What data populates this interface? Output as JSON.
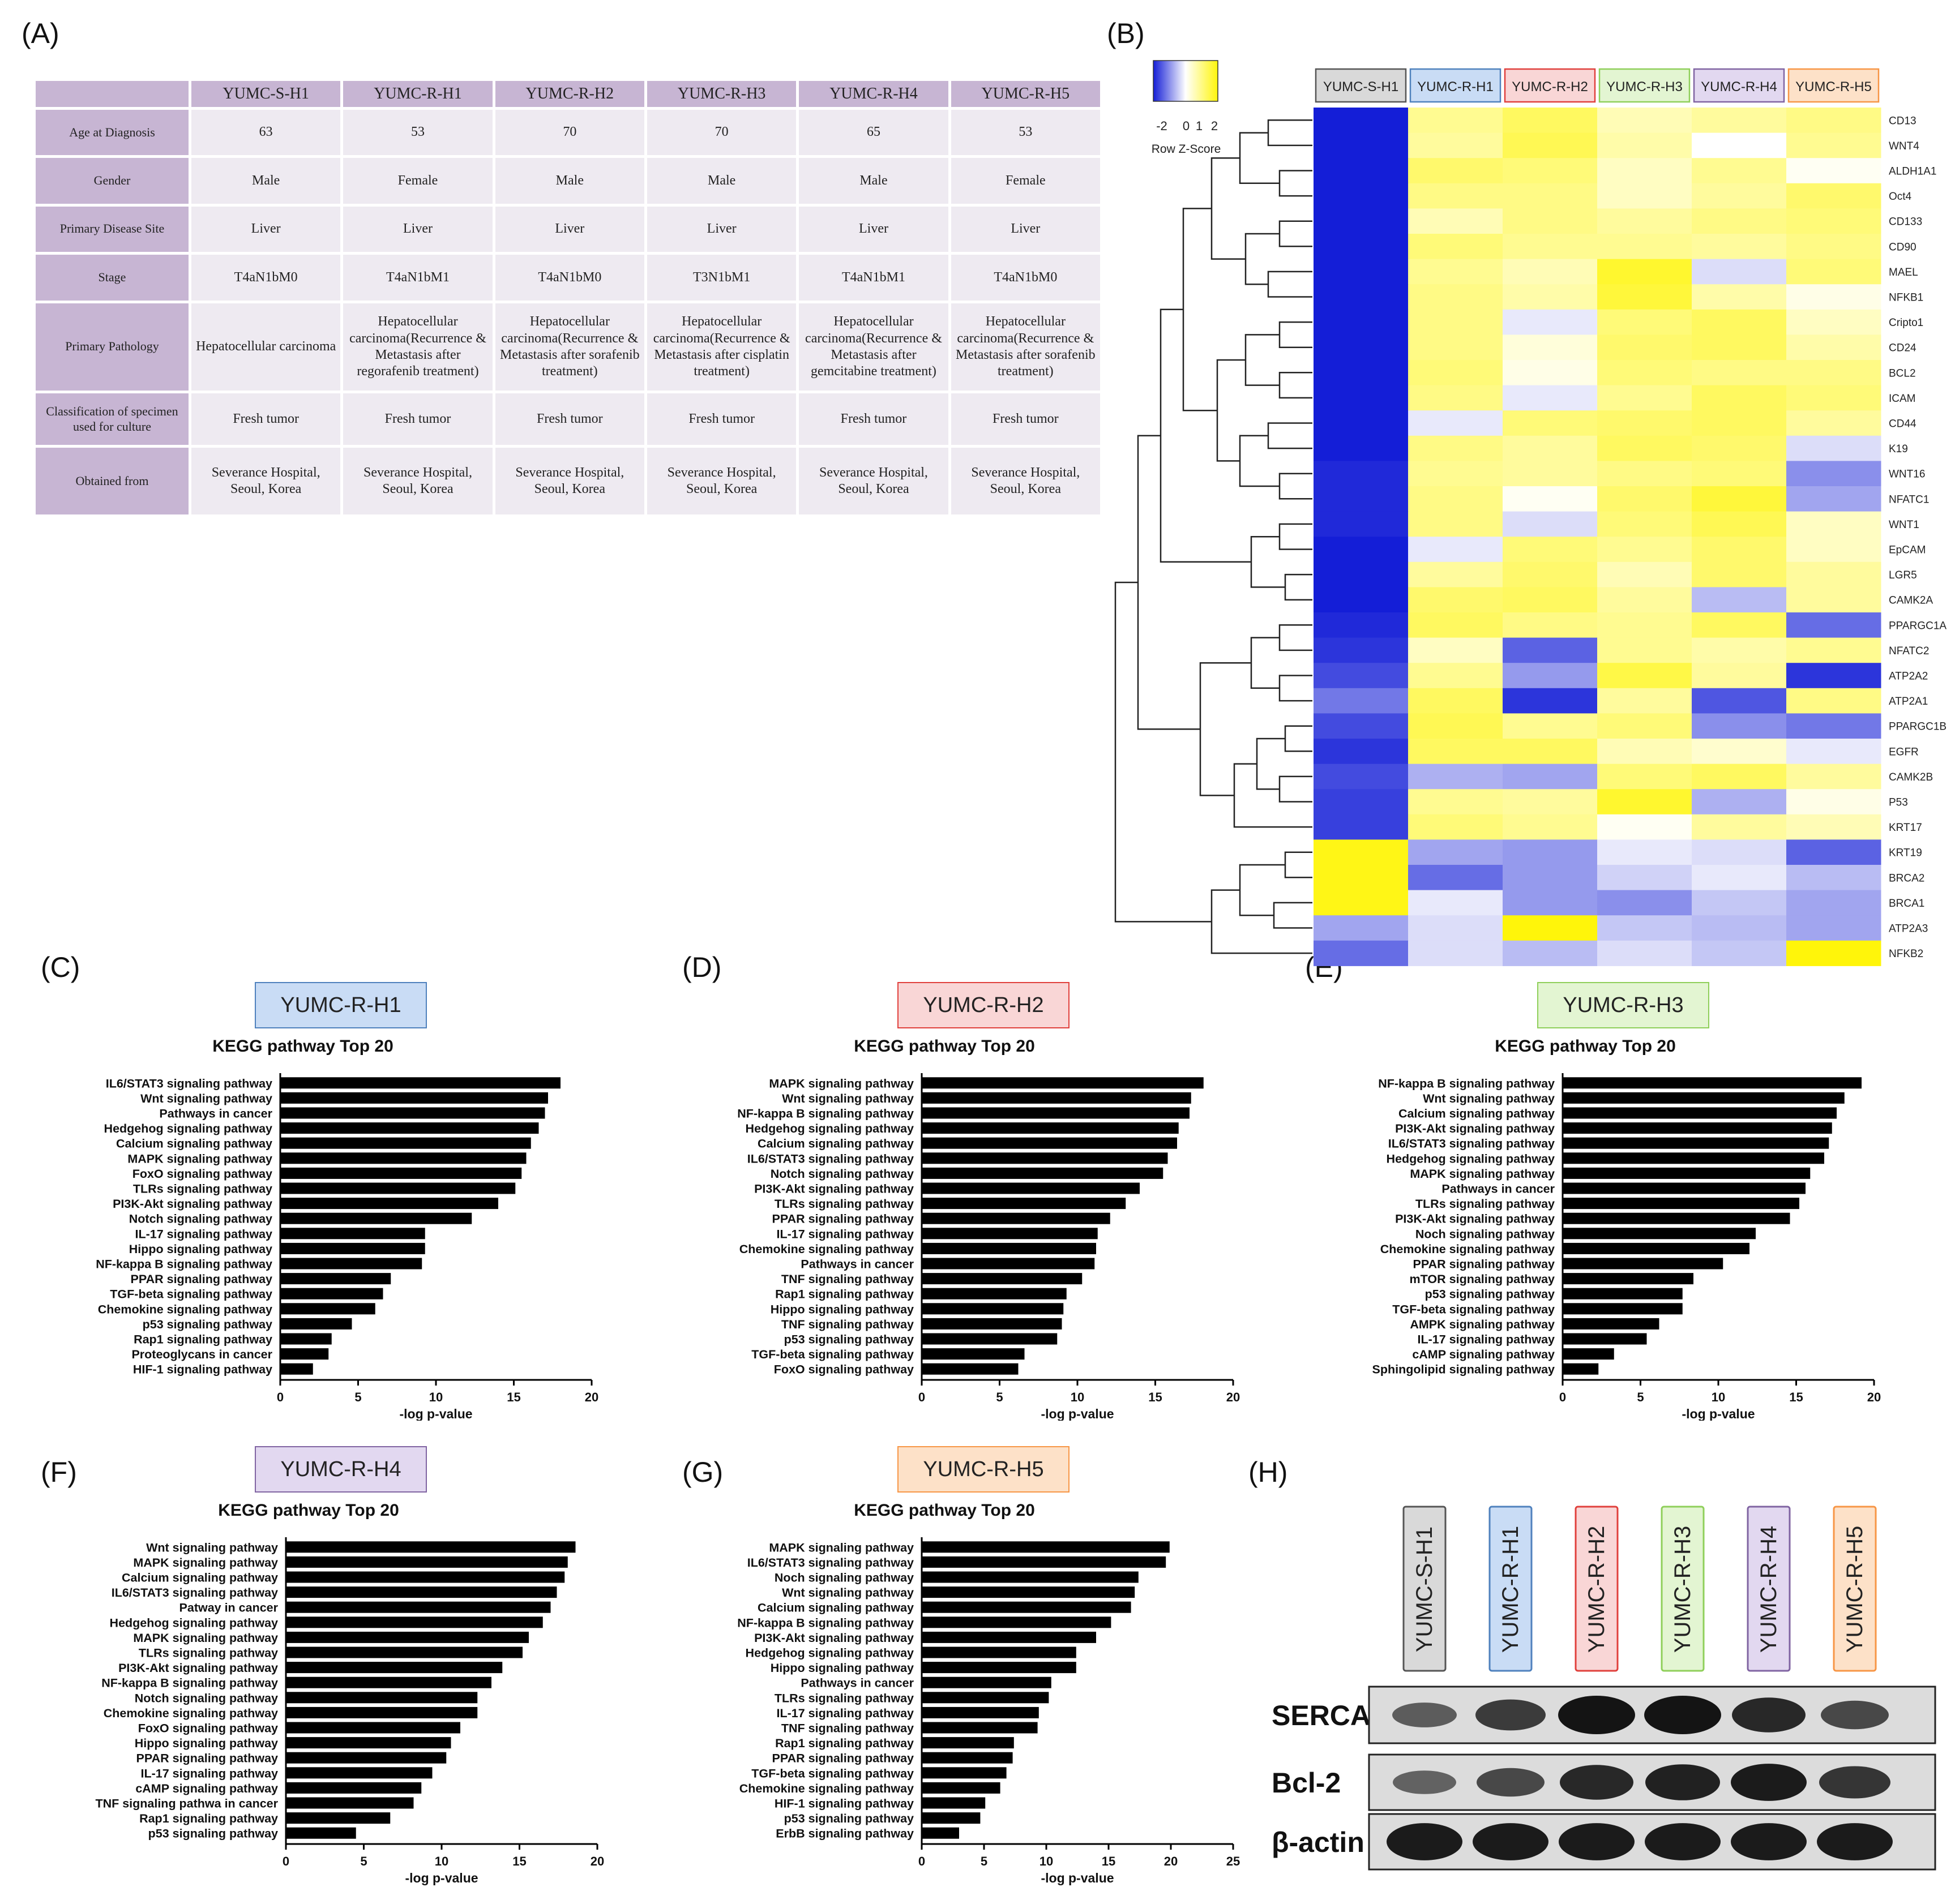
{
  "panels": {
    "a": "(A)",
    "b": "(B)",
    "c": "(C)",
    "d": "(D)",
    "e": "(E)",
    "f": "(F)",
    "g": "(G)",
    "h": "(H)"
  },
  "table": {
    "columns": [
      "YUMC-S-H1",
      "YUMC-R-H1",
      "YUMC-R-H2",
      "YUMC-R-H3",
      "YUMC-R-H4",
      "YUMC-R-H5"
    ],
    "rows": [
      {
        "label": "Age at Diagnosis",
        "values": [
          "63",
          "53",
          "70",
          "70",
          "65",
          "53"
        ]
      },
      {
        "label": "Gender",
        "values": [
          "Male",
          "Female",
          "Male",
          "Male",
          "Male",
          "Female"
        ]
      },
      {
        "label": "Primary Disease Site",
        "values": [
          "Liver",
          "Liver",
          "Liver",
          "Liver",
          "Liver",
          "Liver"
        ]
      },
      {
        "label": "Stage",
        "values": [
          "T4aN1bM0",
          "T4aN1bM1",
          "T4aN1bM0",
          "T3N1bM1",
          "T4aN1bM1",
          "T4aN1bM0"
        ]
      },
      {
        "label": "Primary Pathology",
        "values": [
          "Hepatocellular carcinoma",
          "Hepatocellular carcinoma(Recurrence & Metastasis after regorafenib treatment)",
          "Hepatocellular carcinoma(Recurrence & Metastasis after sorafenib treatment)",
          "Hepatocellular carcinoma(Recurrence & Metastasis after cisplatin treatment)",
          "Hepatocellular carcinoma(Recurrence & Metastasis after gemcitabine treatment)",
          "Hepatocellular carcinoma(Recurrence & Metastasis after sorafenib treatment)"
        ]
      },
      {
        "label": "Classification of specimen used for culture",
        "values": [
          "Fresh tumor",
          "Fresh tumor",
          "Fresh tumor",
          "Fresh tumor",
          "Fresh tumor",
          "Fresh tumor"
        ]
      },
      {
        "label": "Obtained from",
        "values": [
          "Severance Hospital, Seoul, Korea",
          "Severance Hospital, Seoul, Korea",
          "Severance Hospital, Seoul, Korea",
          "Severance Hospital, Seoul, Korea",
          "Severance Hospital, Seoul, Korea",
          "Severance Hospital, Seoul, Korea"
        ]
      }
    ]
  },
  "sample_colors": {
    "YUMC-S-H1": "#d9d9d9",
    "YUMC-R-H1": "#c9dcf5",
    "YUMC-R-H2": "#f9d6d6",
    "YUMC-R-H3": "#e3f5d2",
    "YUMC-R-H4": "#e2d8f0",
    "YUMC-R-H5": "#fde1c8"
  },
  "sample_borders": {
    "YUMC-S-H1": "#555555",
    "YUMC-R-H1": "#4f81bd",
    "YUMC-R-H2": "#e0403c",
    "YUMC-R-H3": "#8fcf5a",
    "YUMC-R-H4": "#8064a2",
    "YUMC-R-H5": "#f79646"
  },
  "chart_data": [
    {
      "type": "heatmap",
      "legend_title": "Row Z-Score",
      "legend_ticks": [
        "-2",
        "0",
        "1",
        "2"
      ],
      "columns": [
        "YUMC-S-H1",
        "YUMC-R-H1",
        "YUMC-R-H2",
        "YUMC-R-H3",
        "YUMC-R-H4",
        "YUMC-R-H5"
      ],
      "rows": [
        "CD13",
        "WNT4",
        "ALDH1A1",
        "Oct4",
        "CD133",
        "CD90",
        "MAEL",
        "NFKB1",
        "Cripto1",
        "CD24",
        "BCL2",
        "ICAM",
        "CD44",
        "K19",
        "WNT16",
        "NFATC1",
        "WNT1",
        "EpCAM",
        "LGR5",
        "CAMK2A",
        "PPARGC1A",
        "NFATC2",
        "ATP2A2",
        "ATP2A1",
        "PPARGC1B",
        "EGFR",
        "CAMK2B",
        "P53",
        "KRT17",
        "KRT19",
        "BRCA2",
        "BRCA1",
        "ATP2A3",
        "NFKB2"
      ],
      "values": [
        [
          -2.0,
          0.9,
          1.3,
          0.6,
          0.8,
          1.0
        ],
        [
          -2.0,
          0.8,
          1.4,
          0.7,
          0.0,
          0.9
        ],
        [
          -2.0,
          1.2,
          1.1,
          0.5,
          0.9,
          0.1
        ],
        [
          -2.0,
          1.0,
          1.0,
          0.5,
          0.8,
          1.2
        ],
        [
          -2.0,
          0.6,
          1.0,
          0.8,
          1.0,
          1.1
        ],
        [
          -2.0,
          1.1,
          0.9,
          0.9,
          0.8,
          1.0
        ],
        [
          -2.0,
          0.9,
          0.6,
          1.7,
          -0.3,
          1.1
        ],
        [
          -2.0,
          1.0,
          0.7,
          1.6,
          0.7,
          0.2
        ],
        [
          -2.0,
          1.0,
          -0.2,
          1.1,
          1.3,
          0.5
        ],
        [
          -2.0,
          1.0,
          0.3,
          1.2,
          1.3,
          0.7
        ],
        [
          -2.0,
          1.1,
          0.2,
          1.1,
          1.0,
          1.0
        ],
        [
          -2.0,
          1.0,
          -0.2,
          0.9,
          1.3,
          1.1
        ],
        [
          -2.0,
          -0.2,
          1.1,
          1.2,
          1.3,
          0.8
        ],
        [
          -2.0,
          1.0,
          0.8,
          1.3,
          1.2,
          -0.3
        ],
        [
          -1.9,
          0.9,
          0.8,
          1.0,
          1.1,
          -1.0
        ],
        [
          -1.9,
          1.0,
          0.1,
          1.2,
          1.6,
          -0.8
        ],
        [
          -1.9,
          1.0,
          -0.3,
          1.1,
          1.4,
          0.5
        ],
        [
          -2.0,
          -0.2,
          1.1,
          0.9,
          1.2,
          0.5
        ],
        [
          -2.0,
          0.8,
          1.2,
          0.6,
          1.2,
          0.8
        ],
        [
          -2.0,
          1.2,
          1.3,
          0.8,
          -0.6,
          0.8
        ],
        [
          -1.9,
          1.3,
          1.0,
          0.9,
          1.3,
          -1.3
        ],
        [
          -1.8,
          0.5,
          -1.4,
          0.9,
          0.7,
          0.9
        ],
        [
          -1.6,
          0.9,
          -0.9,
          1.5,
          0.8,
          -1.8
        ],
        [
          -1.2,
          1.3,
          -1.8,
          0.8,
          -1.5,
          1.0
        ],
        [
          -1.6,
          1.4,
          0.9,
          1.1,
          -1.0,
          -1.2
        ],
        [
          -1.8,
          1.3,
          1.3,
          0.6,
          0.4,
          -0.2
        ],
        [
          -1.6,
          -0.7,
          -0.8,
          1.1,
          1.3,
          0.8
        ],
        [
          -1.7,
          0.9,
          0.8,
          1.7,
          -0.7,
          0.2
        ],
        [
          -1.7,
          1.1,
          0.9,
          0.1,
          0.8,
          0.6
        ],
        [
          1.9,
          -0.8,
          -0.9,
          -0.2,
          -0.3,
          -1.4
        ],
        [
          1.9,
          -1.3,
          -0.9,
          -0.4,
          -0.2,
          -0.6
        ],
        [
          1.9,
          -0.2,
          -0.9,
          -1.0,
          -0.5,
          -0.8
        ],
        [
          -0.8,
          -0.3,
          2.0,
          -0.5,
          -0.6,
          -0.8
        ],
        [
          -1.3,
          -0.3,
          -0.6,
          -0.3,
          -0.5,
          2.0
        ]
      ]
    },
    {
      "type": "bar",
      "orientation": "horizontal",
      "sample": "YUMC-R-H1",
      "title": "KEGG pathway Top 20",
      "xlabel": "-log p-value",
      "xlim": [
        0,
        20
      ],
      "xticks": [
        0,
        5,
        10,
        15,
        20
      ],
      "categories": [
        "IL6/STAT3 signaling pathway",
        "Wnt signaling pathway",
        "Pathways in cancer",
        "Hedgehog signaling pathway",
        "Calcium signaling pathway",
        "MAPK signaling pathway",
        "FoxO signaling pathway",
        "TLRs signaling pathway",
        "PI3K-Akt signaling pathway",
        "Notch signaling pathway",
        "IL-17 signaling pathway",
        "Hippo signaling pathway",
        "NF-kappa B signaling pathway",
        "PPAR signaling pathway",
        "TGF-beta signaling pathway",
        "Chemokine signaling pathway",
        "p53 signaling pathway",
        "Rap1 signaling pathway",
        "Proteoglycans in cancer",
        "HIF-1 signaling pathway"
      ],
      "values": [
        18.0,
        17.2,
        17.0,
        16.6,
        16.1,
        15.8,
        15.5,
        15.1,
        14.0,
        12.3,
        9.3,
        9.3,
        9.1,
        7.1,
        6.6,
        6.1,
        4.6,
        3.3,
        3.1,
        2.1
      ]
    },
    {
      "type": "bar",
      "orientation": "horizontal",
      "sample": "YUMC-R-H2",
      "title": "KEGG pathway Top 20",
      "xlabel": "-log p-value",
      "xlim": [
        0,
        20
      ],
      "xticks": [
        0,
        5,
        10,
        15,
        20
      ],
      "categories": [
        "MAPK signaling pathway",
        "Wnt signaling pathway",
        "NF-kappa B signaling pathway",
        "Hedgehog signaling pathway",
        "Calcium signaling pathway",
        "IL6/STAT3 signaling pathway",
        "Notch signaling pathway",
        "PI3K-Akt signaling pathway",
        "TLRs signaling pathway",
        "PPAR signaling pathway",
        "IL-17 signaling pathway",
        "Chemokine signaling pathway",
        "Pathways in cancer",
        "TNF signaling pathway",
        "Rap1 signaling pathway",
        "Hippo signaling pathway",
        "TNF signaling pathway",
        "p53 signaling pathway",
        "TGF-beta signaling pathway",
        "FoxO signaling pathway"
      ],
      "values": [
        18.1,
        17.3,
        17.2,
        16.5,
        16.4,
        15.8,
        15.5,
        14.0,
        13.1,
        12.1,
        11.3,
        11.2,
        11.1,
        10.3,
        9.3,
        9.1,
        9.0,
        8.7,
        6.6,
        6.2
      ]
    },
    {
      "type": "bar",
      "orientation": "horizontal",
      "sample": "YUMC-R-H3",
      "title": "KEGG pathway Top 20",
      "xlabel": "-log p-value",
      "xlim": [
        0,
        20
      ],
      "xticks": [
        0,
        5,
        10,
        15,
        20
      ],
      "categories": [
        "NF-kappa B signaling pathway",
        "Wnt signaling pathway",
        "Calcium signaling pathway",
        "PI3K-Akt signaling pathway",
        "IL6/STAT3 signaling pathway",
        "Hedgehog signaling pathway",
        "MAPK signaling pathway",
        "Pathways in cancer",
        "TLRs signaling pathway",
        "PI3K-Akt signaling pathway",
        "Noch signaling pathway",
        "Chemokine signaling pathway",
        "PPAR signaling pathway",
        "mTOR signaling pathway",
        "p53 signaling pathway",
        "TGF-beta signaling pathway",
        "AMPK signaling pathway",
        "IL-17 signaling pathway",
        "cAMP signaling pathway",
        "Sphingolipid signaling pathway"
      ],
      "values": [
        19.2,
        18.1,
        17.6,
        17.3,
        17.1,
        16.8,
        15.9,
        15.6,
        15.2,
        14.6,
        12.4,
        12.0,
        10.3,
        8.4,
        7.7,
        7.7,
        6.2,
        5.4,
        3.3,
        2.3
      ]
    },
    {
      "type": "bar",
      "orientation": "horizontal",
      "sample": "YUMC-R-H4",
      "title": "KEGG pathway Top 20",
      "xlabel": "-log p-value",
      "xlim": [
        0,
        20
      ],
      "xticks": [
        0,
        5,
        10,
        15,
        20
      ],
      "categories": [
        "Wnt signaling pathway",
        "MAPK signaling pathway",
        "Calcium signaling pathway",
        "IL6/STAT3 signaling pathway",
        "Patway in cancer",
        "Hedgehog signaling pathway",
        "MAPK signaling pathway",
        "TLRs signaling pathway",
        "PI3K-Akt signaling pathway",
        "NF-kappa B signaling pathway",
        "Notch signaling pathway",
        "Chemokine signaling pathway",
        "FoxO signaling pathway",
        "Hippo signaling pathway",
        "PPAR signaling pathway",
        "IL-17 signaling pathway",
        "cAMP signaling pathway",
        "TNF signaling pathwa in cancer",
        "Rap1 signaling pathway",
        "p53 signaling pathway"
      ],
      "values": [
        18.6,
        18.1,
        17.9,
        17.4,
        17.0,
        16.5,
        15.6,
        15.2,
        13.9,
        13.2,
        12.3,
        12.3,
        11.2,
        10.6,
        10.3,
        9.4,
        8.7,
        8.2,
        6.7,
        4.5
      ]
    },
    {
      "type": "bar",
      "orientation": "horizontal",
      "sample": "YUMC-R-H5",
      "title": "KEGG pathway Top 20",
      "xlabel": "-log p-value",
      "xlim": [
        0,
        25
      ],
      "xticks": [
        0,
        5,
        10,
        15,
        20,
        25
      ],
      "categories": [
        "MAPK signaling pathway",
        "IL6/STAT3 signaling pathway",
        "Noch signaling pathway",
        "Wnt signaling pathway",
        "Calcium signaling pathway",
        "NF-kappa B signaling pathway",
        "PI3K-Akt signaling pathway",
        "Hedgehog signaling pathway",
        "Hippo signaling pathway",
        "Pathways in cancer",
        "TLRs signaling pathway",
        "IL-17 signaling pathway",
        "TNF signaling pathway",
        "Rap1 signaling pathway",
        "PPAR signaling pathway",
        "TGF-beta signaling pathway",
        "Chemokine signaling pathway",
        "HIF-1 signaling pathway",
        "p53 signaling pathway",
        "ErbB signaling pathway"
      ],
      "values": [
        19.9,
        19.6,
        17.4,
        17.1,
        16.8,
        15.2,
        14.0,
        12.4,
        12.4,
        10.4,
        10.2,
        9.4,
        9.3,
        7.4,
        7.3,
        6.8,
        6.3,
        5.1,
        4.7,
        3.0
      ]
    }
  ],
  "western_blot": {
    "lanes": [
      "YUMC-S-H1",
      "YUMC-R-H1",
      "YUMC-R-H2",
      "YUMC-R-H3",
      "YUMC-R-H4",
      "YUMC-R-H5"
    ],
    "blots": [
      {
        "label": "SERCA",
        "intensity": [
          0.45,
          0.7,
          1.0,
          1.0,
          0.85,
          0.6
        ]
      },
      {
        "label": "Bcl-2",
        "intensity": [
          0.4,
          0.6,
          0.85,
          0.9,
          0.95,
          0.75
        ]
      },
      {
        "label": "β-actin",
        "intensity": [
          0.95,
          0.95,
          0.95,
          0.95,
          0.95,
          0.95
        ]
      }
    ]
  }
}
